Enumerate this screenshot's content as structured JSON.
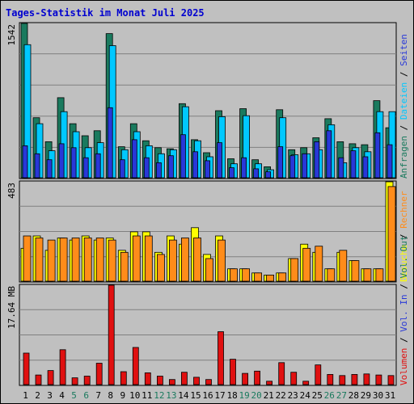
{
  "title": "Tages-Statistik im Monat Juli 2025",
  "days": [
    "1",
    "2",
    "3",
    "4",
    "5",
    "6",
    "7",
    "8",
    "9",
    "10",
    "11",
    "12",
    "13",
    "14",
    "15",
    "16",
    "17",
    "18",
    "19",
    "20",
    "21",
    "22",
    "23",
    "24",
    "25",
    "26",
    "27",
    "28",
    "29",
    "30",
    "31"
  ],
  "weekend_days": [
    "5",
    "6",
    "12",
    "13",
    "19",
    "20",
    "26",
    "27"
  ],
  "colors": {
    "anfragen": "#1a7a5e",
    "dateien": "#00c8ff",
    "seiten": "#2838d8",
    "besuche": "#ffff00",
    "rechner": "#ff8c1a",
    "volumen": "#e01010",
    "weekday_label": "#000000",
    "weekend_label": "#1a7a5e"
  },
  "chart_data": [
    {
      "type": "bar",
      "panel": "top",
      "scale_label": "1542",
      "ylim": [
        0,
        1542
      ],
      "categories": [
        "1",
        "2",
        "3",
        "4",
        "5",
        "6",
        "7",
        "8",
        "9",
        "10",
        "11",
        "12",
        "13",
        "14",
        "15",
        "16",
        "17",
        "18",
        "19",
        "20",
        "21",
        "22",
        "23",
        "24",
        "25",
        "26",
        "27",
        "28",
        "29",
        "30",
        "31"
      ],
      "series": [
        {
          "name": "Anfragen",
          "values": [
            1542,
            600,
            360,
            800,
            540,
            420,
            470,
            1440,
            310,
            540,
            370,
            300,
            290,
            740,
            380,
            250,
            670,
            190,
            690,
            180,
            110,
            680,
            280,
            300,
            400,
            590,
            360,
            340,
            330,
            770,
            500
          ]
        },
        {
          "name": "Dateien",
          "values": [
            1330,
            540,
            270,
            660,
            460,
            300,
            350,
            1320,
            280,
            460,
            320,
            240,
            280,
            710,
            370,
            210,
            610,
            140,
            620,
            140,
            80,
            600,
            230,
            240,
            280,
            530,
            150,
            300,
            260,
            660,
            660
          ]
        },
        {
          "name": "Seiten",
          "values": [
            320,
            240,
            180,
            340,
            300,
            200,
            240,
            700,
            180,
            380,
            200,
            150,
            220,
            430,
            260,
            170,
            350,
            100,
            200,
            90,
            60,
            310,
            220,
            240,
            360,
            470,
            200,
            270,
            210,
            450,
            330
          ]
        }
      ]
    },
    {
      "type": "bar",
      "panel": "middle",
      "scale_label": "483",
      "ylim": [
        0,
        483
      ],
      "categories": [
        "1",
        "2",
        "3",
        "4",
        "5",
        "6",
        "7",
        "8",
        "9",
        "10",
        "11",
        "12",
        "13",
        "14",
        "15",
        "16",
        "17",
        "18",
        "19",
        "20",
        "21",
        "22",
        "23",
        "24",
        "25",
        "26",
        "27",
        "28",
        "29",
        "30",
        "31"
      ],
      "series": [
        {
          "name": "Besuche",
          "values": [
            160,
            220,
            150,
            210,
            200,
            220,
            200,
            210,
            150,
            240,
            240,
            140,
            220,
            180,
            260,
            130,
            220,
            60,
            60,
            40,
            30,
            40,
            110,
            180,
            140,
            60,
            140,
            100,
            60,
            60,
            483
          ]
        },
        {
          "name": "Rechner",
          "values": [
            220,
            210,
            200,
            210,
            210,
            210,
            210,
            200,
            140,
            220,
            220,
            130,
            200,
            210,
            210,
            110,
            200,
            60,
            60,
            40,
            30,
            40,
            110,
            160,
            170,
            60,
            150,
            100,
            60,
            60,
            460
          ]
        }
      ]
    },
    {
      "type": "bar",
      "panel": "bottom",
      "scale_label": "17.64 MB",
      "ylim": [
        0,
        17.64
      ],
      "categories": [
        "1",
        "2",
        "3",
        "4",
        "5",
        "6",
        "7",
        "8",
        "9",
        "10",
        "11",
        "12",
        "13",
        "14",
        "15",
        "16",
        "17",
        "18",
        "19",
        "20",
        "21",
        "22",
        "23",
        "24",
        "25",
        "26",
        "27",
        "28",
        "29",
        "30",
        "31"
      ],
      "series": [
        {
          "name": "Volumen",
          "values": [
            5.6,
            1.7,
            2.5,
            6.2,
            1.2,
            1.5,
            3.8,
            17.64,
            2.3,
            6.6,
            2.1,
            1.5,
            0.9,
            2.2,
            1.3,
            0.9,
            9.4,
            4.5,
            2.0,
            2.4,
            0.6,
            3.9,
            2.2,
            0.6,
            3.5,
            1.8,
            1.6,
            1.8,
            1.9,
            1.7,
            1.6
          ]
        }
      ]
    }
  ],
  "right_labels": {
    "top": [
      "Anfragen",
      "Dateien",
      "Seiten"
    ],
    "middle": [
      "Besuche",
      "Rechner"
    ],
    "bottom": [
      "Volumen",
      "Vol. In",
      "Vol. Out"
    ],
    "separator": " / "
  }
}
